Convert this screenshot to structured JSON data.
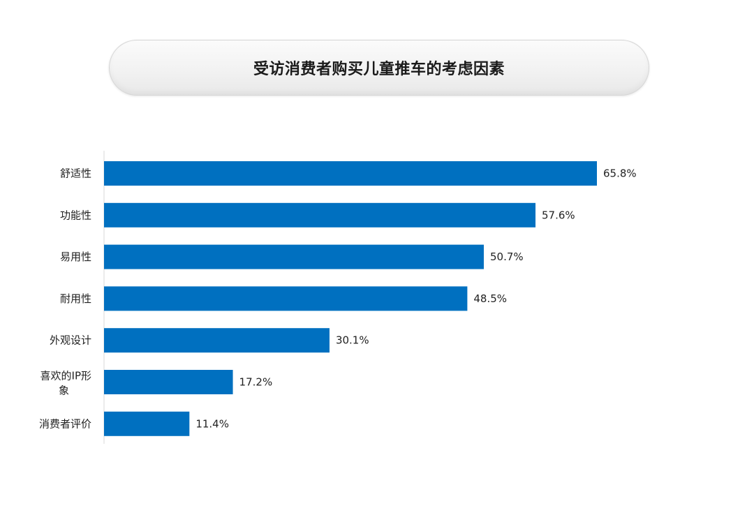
{
  "title": "受访消费者购买儿童推车的考虑因素",
  "colors": {
    "bar": "#0070c0",
    "axis": "#d9d9d9",
    "text": "#222222"
  },
  "chart_data": {
    "type": "bar",
    "orientation": "horizontal",
    "title": "受访消费者购买儿童推车的考虑因素",
    "categories": [
      "舒适性",
      "功能性",
      "易用性",
      "耐用性",
      "外观设计",
      "喜欢的IP形象",
      "消费者评价"
    ],
    "values": [
      65.8,
      57.6,
      50.7,
      48.5,
      30.1,
      17.2,
      11.4
    ],
    "value_labels": [
      "65.8%",
      "57.6%",
      "50.7%",
      "48.5%",
      "30.1%",
      "17.2%",
      "11.4%"
    ],
    "unit": "%",
    "xlim": [
      0,
      65.8
    ],
    "grid": false,
    "legend": "none"
  }
}
